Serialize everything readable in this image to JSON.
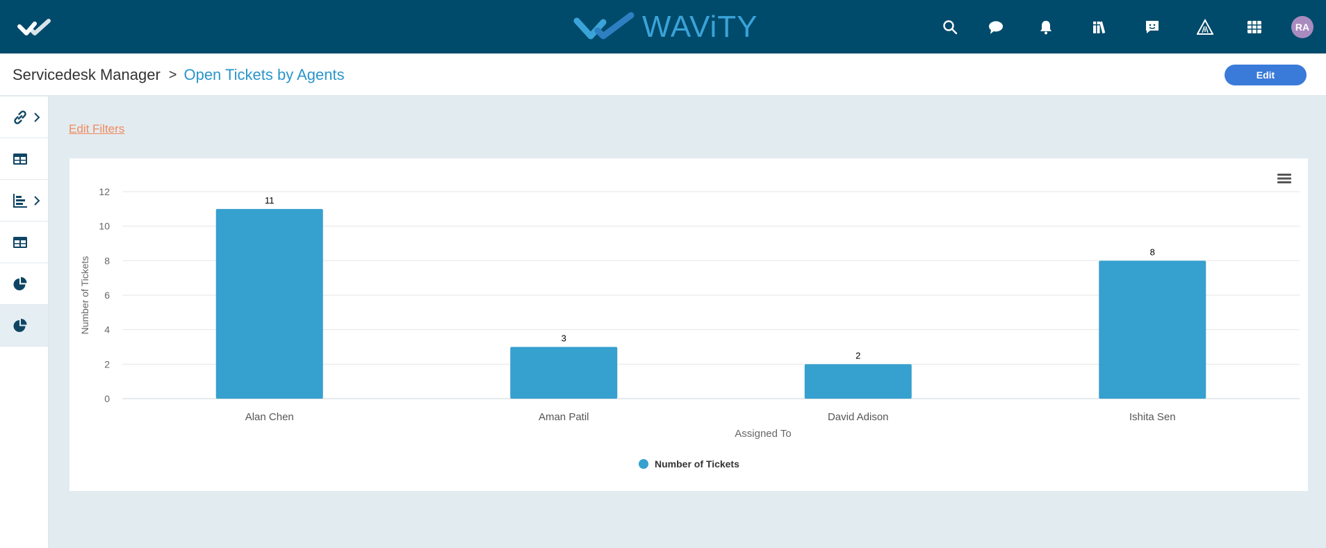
{
  "topbar": {
    "brand": "WAViTY",
    "icons": [
      "search-icon",
      "chat-icon",
      "bell-icon",
      "library-icon",
      "feedback-icon",
      "warning-road-icon",
      "grid-icon"
    ],
    "avatar_initials": "RA"
  },
  "header": {
    "breadcrumb_root": "Servicedesk Manager",
    "breadcrumb_sep": ">",
    "breadcrumb_current": "Open Tickets by Agents",
    "edit_label": "Edit"
  },
  "sidebar": {
    "items": [
      "link-icon",
      "table-icon",
      "bar-chart-icon",
      "table-icon",
      "pie-chart-icon",
      "pie-chart-icon"
    ]
  },
  "content": {
    "edit_filters_label": "Edit Filters"
  },
  "chart_data": {
    "type": "bar",
    "categories": [
      "Alan Chen",
      "Aman Patil",
      "David Adison",
      "Ishita Sen"
    ],
    "series": [
      {
        "name": "Number of Tickets",
        "values": [
          11,
          3,
          2,
          8
        ],
        "color": "#36a0cf"
      }
    ],
    "title": "",
    "xlabel": "Assigned To",
    "ylabel": "Number of Tickets",
    "ylim": [
      0,
      12
    ],
    "yticks": [
      0,
      2,
      4,
      6,
      8,
      10,
      12
    ],
    "grid": true,
    "legend": "bottom-center",
    "data_labels": true
  }
}
